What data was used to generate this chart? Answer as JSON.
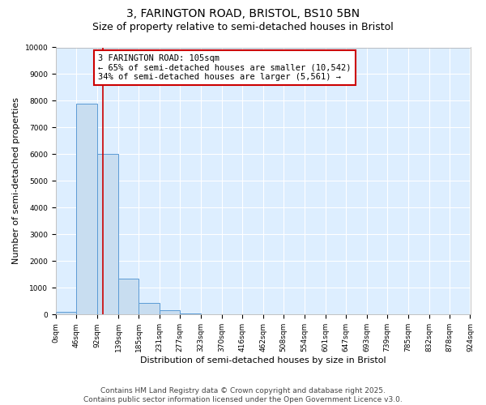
{
  "title_line1": "3, FARINGTON ROAD, BRISTOL, BS10 5BN",
  "title_line2": "Size of property relative to semi-detached houses in Bristol",
  "xlabel": "Distribution of semi-detached houses by size in Bristol",
  "ylabel": "Number of semi-detached properties",
  "bar_values": [
    100,
    7900,
    6000,
    1350,
    450,
    150,
    50,
    15,
    5,
    2,
    1,
    0,
    0,
    0,
    0,
    0,
    0,
    0,
    0,
    0
  ],
  "bin_edges": [
    0,
    46,
    92,
    139,
    185,
    231,
    277,
    323,
    370,
    416,
    462,
    508,
    554,
    601,
    647,
    693,
    739,
    785,
    832,
    878,
    924
  ],
  "bin_labels": [
    "0sqm",
    "46sqm",
    "92sqm",
    "139sqm",
    "185sqm",
    "231sqm",
    "277sqm",
    "323sqm",
    "370sqm",
    "416sqm",
    "462sqm",
    "508sqm",
    "554sqm",
    "601sqm",
    "647sqm",
    "693sqm",
    "739sqm",
    "785sqm",
    "832sqm",
    "878sqm",
    "924sqm"
  ],
  "bar_color": "#c8ddf0",
  "bar_edge_color": "#5b9bd5",
  "property_line_x": 105,
  "property_line_color": "#cc0000",
  "ylim": [
    0,
    10000
  ],
  "yticks": [
    0,
    1000,
    2000,
    3000,
    4000,
    5000,
    6000,
    7000,
    8000,
    9000,
    10000
  ],
  "annotation_text": "3 FARINGTON ROAD: 105sqm\n← 65% of semi-detached houses are smaller (10,542)\n34% of semi-detached houses are larger (5,561) →",
  "annotation_box_color": "#cc0000",
  "footer_line1": "Contains HM Land Registry data © Crown copyright and database right 2025.",
  "footer_line2": "Contains public sector information licensed under the Open Government Licence v3.0.",
  "background_color": "#ddeeff",
  "grid_color": "#ffffff",
  "title_fontsize": 10,
  "subtitle_fontsize": 9,
  "axis_label_fontsize": 8,
  "tick_fontsize": 6.5,
  "annotation_fontsize": 7.5,
  "footer_fontsize": 6.5
}
